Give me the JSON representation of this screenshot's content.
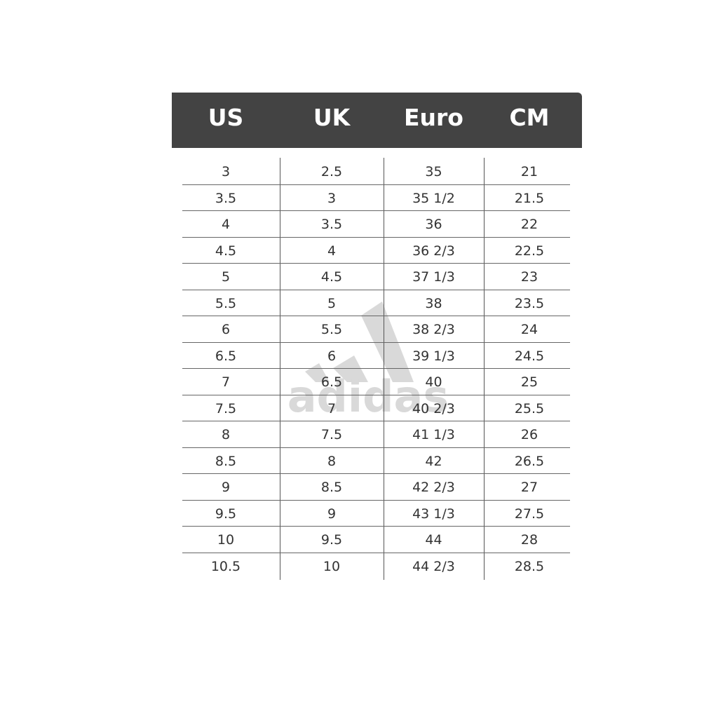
{
  "header": [
    "US",
    "UK",
    "Euro",
    "CM"
  ],
  "rows": [
    [
      "3",
      "2.5",
      "35",
      "21"
    ],
    [
      "3.5",
      "3",
      "35 1/2",
      "21.5"
    ],
    [
      "4",
      "3.5",
      "36",
      "22"
    ],
    [
      "4.5",
      "4",
      "36 2/3",
      "22.5"
    ],
    [
      "5",
      "4.5",
      "37 1/3",
      "23"
    ],
    [
      "5.5",
      "5",
      "38",
      "23.5"
    ],
    [
      "6",
      "5.5",
      "38 2/3",
      "24"
    ],
    [
      "6.5",
      "6",
      "39 1/3",
      "24.5"
    ],
    [
      "7",
      "6.5",
      "40",
      "25"
    ],
    [
      "7.5",
      "7",
      "40 2/3",
      "25.5"
    ],
    [
      "8",
      "7.5",
      "41 1/3",
      "26"
    ],
    [
      "8.5",
      "8",
      "42",
      "26.5"
    ],
    [
      "9",
      "8.5",
      "42 2/3",
      "27"
    ],
    [
      "9.5",
      "9",
      "43 1/3",
      "27.5"
    ],
    [
      "10",
      "9.5",
      "44",
      "28"
    ],
    [
      "10.5",
      "10",
      "44 2/3",
      "28.5"
    ]
  ],
  "watermark": {
    "text": "adidas",
    "icon": "adidas-logo-icon"
  },
  "colors": {
    "header_bg": "#434343",
    "header_text": "#ffffff",
    "cell_text": "#333333"
  }
}
